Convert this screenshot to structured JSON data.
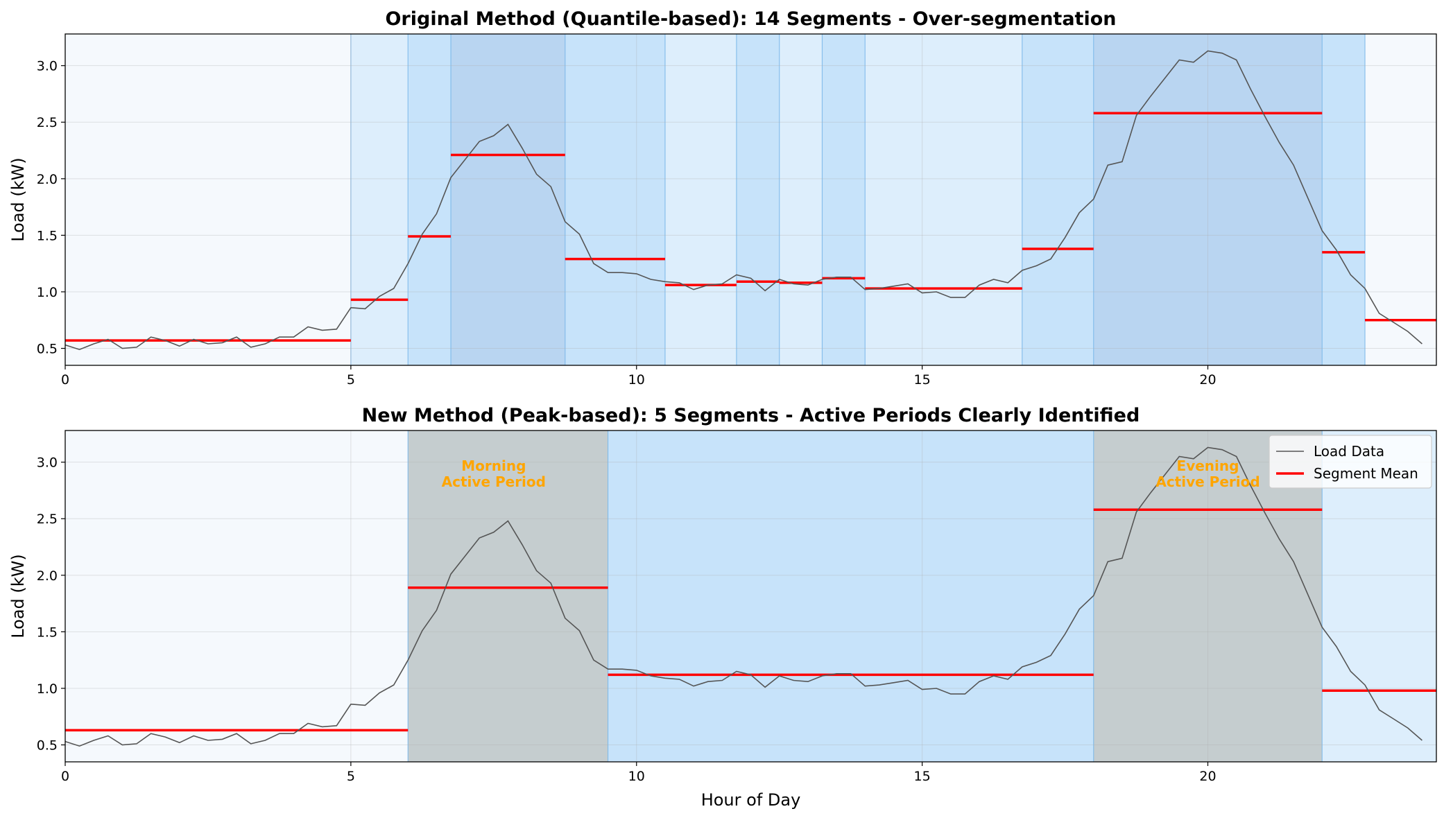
{
  "chart_data": [
    {
      "type": "line",
      "title": "Original Method (Quantile-based): 14 Segments - Over-segmentation",
      "xlabel": "",
      "ylabel": "Load (kW)",
      "xlim": [
        0,
        24
      ],
      "ylim": [
        0.35,
        3.28
      ],
      "xticks": [
        0,
        5,
        10,
        15,
        20
      ],
      "yticks": [
        0.5,
        1.0,
        1.5,
        2.0,
        2.5,
        3.0
      ],
      "ytick_labels": [
        "0.5",
        "1.0",
        "1.5",
        "2.0",
        "2.5",
        "3.0"
      ],
      "grid": true,
      "segments": [
        {
          "start": 0.0,
          "end": 5.0,
          "mean": 0.57,
          "color": "#f5f9fd"
        },
        {
          "start": 5.0,
          "end": 6.0,
          "mean": 0.93,
          "color": "#ddeefc"
        },
        {
          "start": 6.0,
          "end": 6.75,
          "mean": 1.49,
          "color": "#c7e3fa"
        },
        {
          "start": 6.75,
          "end": 8.75,
          "mean": 2.21,
          "color": "#b9d5f1"
        },
        {
          "start": 8.75,
          "end": 10.5,
          "mean": 1.29,
          "color": "#c7e3fa"
        },
        {
          "start": 10.5,
          "end": 11.75,
          "mean": 1.06,
          "color": "#ddeefc"
        },
        {
          "start": 11.75,
          "end": 12.5,
          "mean": 1.09,
          "color": "#c7e3fa"
        },
        {
          "start": 12.5,
          "end": 13.25,
          "mean": 1.08,
          "color": "#ddeefc"
        },
        {
          "start": 13.25,
          "end": 14.0,
          "mean": 1.12,
          "color": "#c7e3fa"
        },
        {
          "start": 14.0,
          "end": 16.75,
          "mean": 1.03,
          "color": "#ddeefc"
        },
        {
          "start": 16.75,
          "end": 18.0,
          "mean": 1.38,
          "color": "#c7e3fa"
        },
        {
          "start": 18.0,
          "end": 22.0,
          "mean": 2.58,
          "color": "#b9d5f1"
        },
        {
          "start": 22.0,
          "end": 22.75,
          "mean": 1.35,
          "color": "#c7e3fa"
        },
        {
          "start": 22.75,
          "end": 24.0,
          "mean": 0.75,
          "color": "#f5f9fd"
        }
      ],
      "annotations": [],
      "legend": null
    },
    {
      "type": "line",
      "title": "New Method (Peak-based): 5 Segments - Active Periods Clearly Identified",
      "xlabel": "Hour of Day",
      "ylabel": "Load (kW)",
      "xlim": [
        0,
        24
      ],
      "ylim": [
        0.35,
        3.28
      ],
      "xticks": [
        0,
        5,
        10,
        15,
        20
      ],
      "yticks": [
        0.5,
        1.0,
        1.5,
        2.0,
        2.5,
        3.0
      ],
      "ytick_labels": [
        "0.5",
        "1.0",
        "1.5",
        "2.0",
        "2.5",
        "3.0"
      ],
      "grid": true,
      "segments": [
        {
          "start": 0.0,
          "end": 6.0,
          "mean": 0.63,
          "color": "#f5f9fd"
        },
        {
          "start": 6.0,
          "end": 9.5,
          "mean": 1.89,
          "color": "#c5cdcf"
        },
        {
          "start": 9.5,
          "end": 18.0,
          "mean": 1.12,
          "color": "#c7e3fa"
        },
        {
          "start": 18.0,
          "end": 22.0,
          "mean": 2.58,
          "color": "#c5cdcf"
        },
        {
          "start": 22.0,
          "end": 24.0,
          "mean": 0.98,
          "color": "#ddeefc"
        }
      ],
      "annotations": [
        {
          "lines": [
            "Morning",
            "Active Period"
          ],
          "x": 7.5,
          "y": 2.9,
          "color": "#ffa500"
        },
        {
          "lines": [
            "Evening",
            "Active Period"
          ],
          "x": 20.0,
          "y": 2.9,
          "color": "#ffa500"
        }
      ],
      "legend": {
        "placement": "top-right",
        "entries": [
          {
            "label": "Load Data",
            "color": "#555555",
            "style": "thin-line"
          },
          {
            "label": "Segment Mean",
            "color": "#ff0000",
            "style": "thick-line"
          }
        ]
      }
    }
  ],
  "load_series": {
    "name": "Load Data",
    "color": "#555555",
    "x_step_hours": 0.25,
    "y": [
      0.53,
      0.49,
      0.54,
      0.58,
      0.5,
      0.51,
      0.6,
      0.57,
      0.52,
      0.58,
      0.54,
      0.55,
      0.6,
      0.51,
      0.54,
      0.6,
      0.6,
      0.69,
      0.66,
      0.67,
      0.86,
      0.85,
      0.96,
      1.03,
      1.25,
      1.51,
      1.69,
      2.01,
      2.17,
      2.33,
      2.38,
      2.48,
      2.27,
      2.04,
      1.93,
      1.62,
      1.51,
      1.25,
      1.17,
      1.17,
      1.16,
      1.11,
      1.09,
      1.08,
      1.02,
      1.06,
      1.07,
      1.15,
      1.12,
      1.01,
      1.11,
      1.07,
      1.06,
      1.11,
      1.13,
      1.13,
      1.02,
      1.03,
      1.05,
      1.07,
      0.99,
      1.0,
      0.95,
      0.95,
      1.06,
      1.11,
      1.08,
      1.19,
      1.23,
      1.29,
      1.48,
      1.7,
      1.82,
      2.12,
      2.15,
      2.56,
      2.73,
      2.89,
      3.05,
      3.03,
      3.13,
      3.11,
      3.05,
      2.79,
      2.55,
      2.32,
      2.12,
      1.83,
      1.54,
      1.37,
      1.15,
      1.03,
      0.81,
      0.73,
      0.65,
      0.54
    ]
  },
  "segment_mean": {
    "name": "Segment Mean",
    "color": "#ff0000"
  }
}
